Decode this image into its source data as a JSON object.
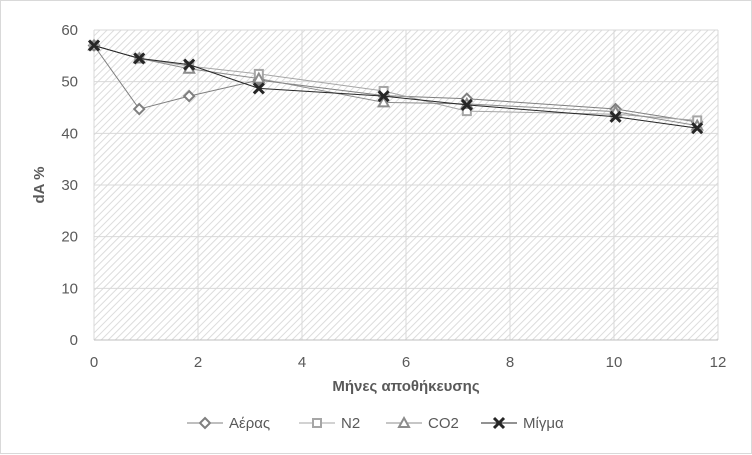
{
  "chart_data": {
    "type": "line",
    "title": "",
    "xlabel": "Μήνες αποθήκευσης",
    "ylabel": "dA %",
    "xlim": [
      0,
      12
    ],
    "ylim": [
      0,
      60
    ],
    "x_ticks": [
      0,
      2,
      4,
      6,
      8,
      10,
      12
    ],
    "y_ticks": [
      0,
      10,
      20,
      30,
      40,
      50,
      60
    ],
    "grid": true,
    "legend_position": "bottom",
    "series": [
      {
        "name": "Αέρας",
        "marker": "diamond",
        "color": "#7f7f7f",
        "x": [
          0,
          0.87,
          1.83,
          3.17,
          5.57,
          7.17,
          10.03,
          11.6
        ],
        "values": [
          57,
          44.7,
          47.2,
          50.3,
          47.3,
          46.7,
          44.7,
          42.2
        ]
      },
      {
        "name": "N2",
        "marker": "square",
        "color": "#a6a6a6",
        "x": [
          0,
          0.87,
          1.83,
          3.17,
          5.57,
          7.17,
          10.03,
          11.6
        ],
        "values": [
          57,
          54.5,
          53,
          51.5,
          48.2,
          44.3,
          43.7,
          42.5
        ]
      },
      {
        "name": "CO2",
        "marker": "triangle",
        "color": "#8c8c8c",
        "x": [
          0,
          0.87,
          1.83,
          3.17,
          5.57,
          7.17,
          10.03,
          11.6
        ],
        "values": [
          57,
          54.5,
          52.5,
          50.6,
          46,
          45.7,
          44.2,
          41.5
        ]
      },
      {
        "name": "Μίγμα",
        "marker": "x",
        "color": "#262626",
        "x": [
          0,
          0.87,
          1.83,
          3.17,
          5.57,
          7.17,
          10.03,
          11.6
        ],
        "values": [
          57,
          54.5,
          53.3,
          48.7,
          47.2,
          45.5,
          43.2,
          41
        ]
      }
    ]
  }
}
